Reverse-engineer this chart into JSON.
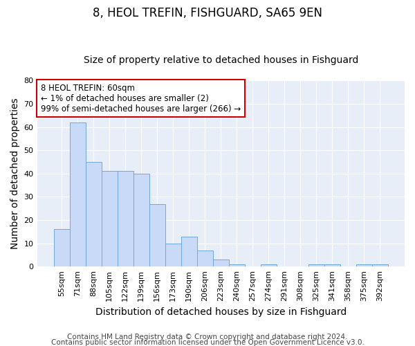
{
  "title": "8, HEOL TREFIN, FISHGUARD, SA65 9EN",
  "subtitle": "Size of property relative to detached houses in Fishguard",
  "xlabel": "Distribution of detached houses by size in Fishguard",
  "ylabel": "Number of detached properties",
  "footer1": "Contains HM Land Registry data © Crown copyright and database right 2024.",
  "footer2": "Contains public sector information licensed under the Open Government Licence v3.0.",
  "annotation_title": "8 HEOL TREFIN: 60sqm",
  "annotation_line2": "← 1% of detached houses are smaller (2)",
  "annotation_line3": "99% of semi-detached houses are larger (266) →",
  "bar_labels": [
    "55sqm",
    "71sqm",
    "88sqm",
    "105sqm",
    "122sqm",
    "139sqm",
    "156sqm",
    "173sqm",
    "190sqm",
    "206sqm",
    "223sqm",
    "240sqm",
    "257sqm",
    "274sqm",
    "291sqm",
    "308sqm",
    "325sqm",
    "341sqm",
    "358sqm",
    "375sqm",
    "392sqm"
  ],
  "bar_values": [
    16,
    62,
    45,
    41,
    41,
    40,
    27,
    10,
    13,
    7,
    3,
    1,
    0,
    1,
    0,
    0,
    1,
    1,
    0,
    1,
    1
  ],
  "bar_color": "#c9daf8",
  "bar_edge_color": "#6fa8dc",
  "ylim": [
    0,
    80
  ],
  "yticks": [
    0,
    10,
    20,
    30,
    40,
    50,
    60,
    70,
    80
  ],
  "fig_bg": "#ffffff",
  "plot_bg": "#e8eef8",
  "grid_color": "#ffffff",
  "annotation_box_color": "white",
  "annotation_box_edge": "#cc0000",
  "title_fontsize": 12,
  "subtitle_fontsize": 10,
  "axis_label_fontsize": 10,
  "tick_fontsize": 8,
  "footer_fontsize": 7.5
}
